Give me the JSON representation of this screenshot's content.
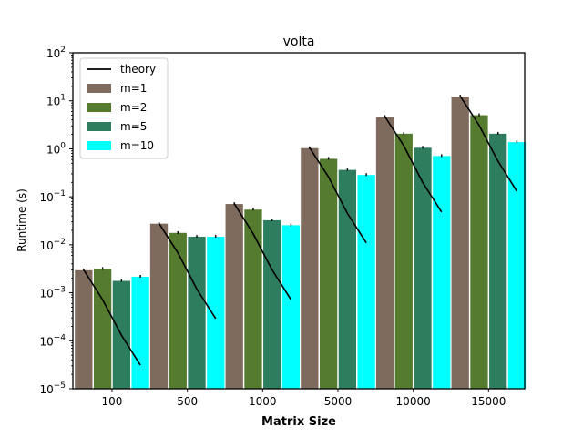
{
  "chart_data": {
    "type": "bar",
    "title": "volta",
    "xlabel": "Matrix Size",
    "ylabel": "Runtime (s)",
    "yscale": "log",
    "ylim": [
      1e-05,
      100
    ],
    "categories": [
      "100",
      "500",
      "1000",
      "5000",
      "10000",
      "15000"
    ],
    "y_tick_labels": [
      {
        "base": "10",
        "exp": "−5",
        "value": 1e-05
      },
      {
        "base": "10",
        "exp": "−4",
        "value": 0.0001
      },
      {
        "base": "10",
        "exp": "−3",
        "value": 0.001
      },
      {
        "base": "10",
        "exp": "−2",
        "value": 0.01
      },
      {
        "base": "10",
        "exp": "−1",
        "value": 0.1
      },
      {
        "base": "10",
        "exp": "0",
        "value": 1
      },
      {
        "base": "10",
        "exp": "1",
        "value": 10
      },
      {
        "base": "10",
        "exp": "2",
        "value": 100
      }
    ],
    "series": [
      {
        "name": "m=1",
        "color": "#7f6b5d",
        "values": [
          0.003,
          0.028,
          0.072,
          1.05,
          4.7,
          12.5
        ]
      },
      {
        "name": "m=2",
        "color": "#557b2e",
        "values": [
          0.0032,
          0.018,
          0.055,
          0.63,
          2.1,
          5.1
        ]
      },
      {
        "name": "m=5",
        "color": "#2e7d5e",
        "values": [
          0.0018,
          0.015,
          0.033,
          0.37,
          1.07,
          2.1
        ]
      },
      {
        "name": "m=10",
        "color": "#00ffff",
        "values": [
          0.0022,
          0.015,
          0.026,
          0.29,
          0.72,
          1.4
        ]
      }
    ],
    "error_bars": true,
    "theory": {
      "name": "theory",
      "color": "#000000",
      "values": [
        [
          0.003,
          0.00072,
          0.00013,
          3.1e-05
        ],
        [
          0.028,
          0.0068,
          0.0012,
          0.00029
        ],
        [
          0.072,
          0.017,
          0.003,
          0.00072
        ],
        [
          1.05,
          0.26,
          0.045,
          0.011
        ],
        [
          4.7,
          1.15,
          0.2,
          0.048
        ],
        [
          12.5,
          3.1,
          0.55,
          0.13
        ]
      ]
    },
    "legend": {
      "position": "upper-left"
    },
    "grid": false
  }
}
